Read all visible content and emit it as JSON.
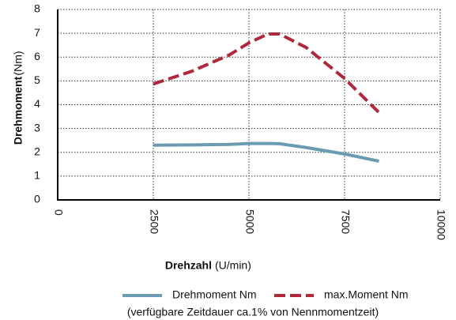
{
  "chart_data": {
    "type": "line",
    "x_label_bold": "Drehzahl",
    "x_label": "(U/min)",
    "y_label_bold": "Drehmoment",
    "y_label": "(Nm)",
    "x": [
      2500,
      3500,
      4500,
      5000,
      5500,
      5800,
      6500,
      7500,
      8400
    ],
    "series": [
      {
        "name": "Drehmoment Nm",
        "color": "#6b9bb0",
        "dash": false,
        "values": [
          2.3,
          2.31,
          2.33,
          2.37,
          2.37,
          2.36,
          2.2,
          1.93,
          1.63
        ]
      },
      {
        "name": "max.Moment Nm",
        "color": "#b0283c",
        "dash": true,
        "values": [
          4.87,
          5.4,
          6.1,
          6.6,
          6.97,
          6.97,
          6.4,
          5.1,
          3.67
        ]
      }
    ],
    "xlim": [
      0,
      10000
    ],
    "xticks": [
      0,
      2500,
      5000,
      7500,
      10000
    ],
    "ylim": [
      0,
      8
    ],
    "yticks": [
      0,
      1,
      2,
      3,
      4,
      5,
      6,
      7,
      8
    ],
    "grid": true,
    "note": "(verfügbare Zeitdauer ca.1% von Nennmomentzeit)"
  }
}
